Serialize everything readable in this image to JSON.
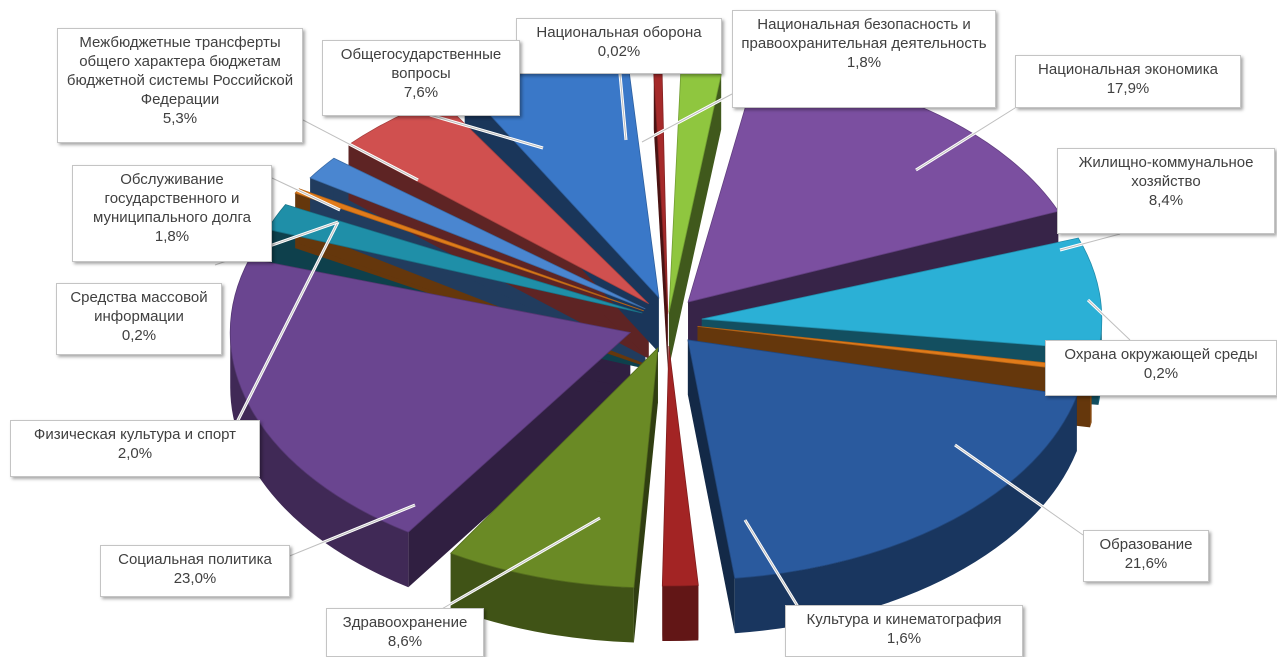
{
  "chart_data": {
    "type": "pie",
    "title": "",
    "style": "3d-exploded",
    "unit": "%",
    "slices": [
      {
        "name": "Национальная оборона",
        "value_label": "0,02%",
        "value": 0.02,
        "color": "#a52a2a"
      },
      {
        "name": "Национальная безопасность и правоохранительная деятельность",
        "value_label": "1,8%",
        "value": 1.8,
        "color": "#8fc63f"
      },
      {
        "name": "Национальная экономика",
        "value_label": "17,9%",
        "value": 17.9,
        "color": "#7b4fa0"
      },
      {
        "name": "Жилищно-коммунальное хозяйство",
        "value_label": "8,4%",
        "value": 8.4,
        "color": "#2bb0d6"
      },
      {
        "name": "Охрана окружающей среды",
        "value_label": "0,2%",
        "value": 0.2,
        "color": "#e07b1a"
      },
      {
        "name": "Образование",
        "value_label": "21,6%",
        "value": 21.6,
        "color": "#2a5a9e"
      },
      {
        "name": "Культура и кинематография",
        "value_label": "1,6%",
        "value": 1.6,
        "color": "#a32424"
      },
      {
        "name": "Здравоохранение",
        "value_label": "8,6%",
        "value": 8.6,
        "color": "#6a8a25"
      },
      {
        "name": "Социальная политика",
        "value_label": "23,0%",
        "value": 23.0,
        "color": "#6a4590"
      },
      {
        "name": "Физическая культура и спорт",
        "value_label": "2,0%",
        "value": 2.0,
        "color": "#1f8fa8"
      },
      {
        "name": "Средства массовой информации",
        "value_label": "0,2%",
        "value": 0.2,
        "color": "#e07b1a"
      },
      {
        "name": "Обслуживание государственного и муниципального долга",
        "value_label": "1,8%",
        "value": 1.8,
        "color": "#4a86d0"
      },
      {
        "name": "Межбюджетные трансферты общего характера бюджетам бюджетной системы Российской Федерации",
        "value_label": "5,3%",
        "value": 5.3,
        "color": "#d0504f"
      },
      {
        "name": "Общегосударственные вопросы",
        "value_label": "7,6%",
        "value": 7.6,
        "color": "#3a78c8"
      }
    ]
  }
}
